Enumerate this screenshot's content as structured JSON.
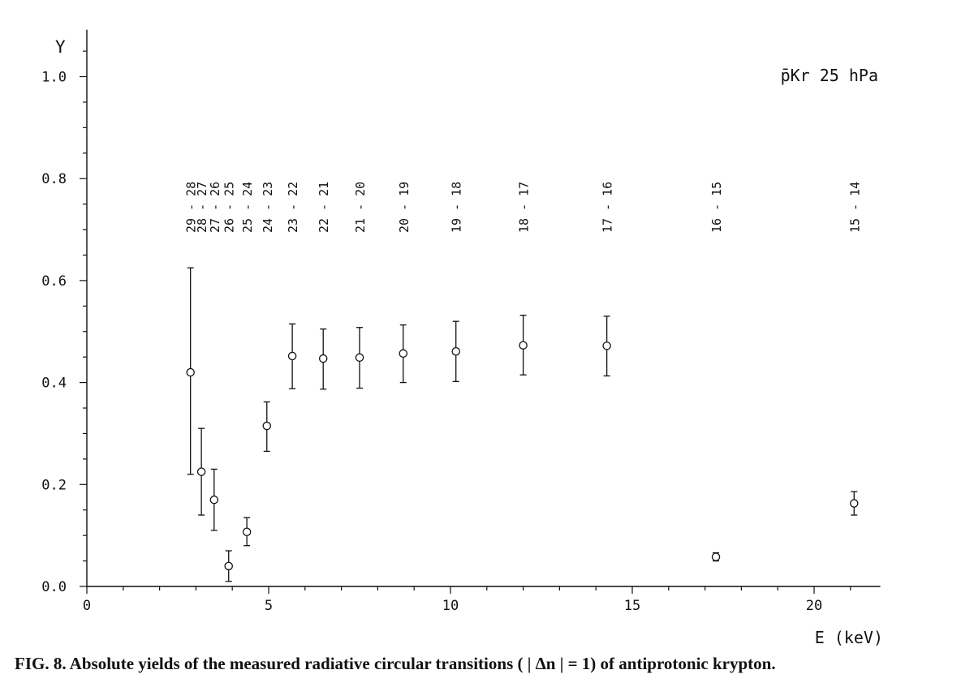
{
  "chart_data": {
    "type": "scatter",
    "ylabel": "Y",
    "xlabel": "E (keV)",
    "annotation": "p̄Kr 25 hPa",
    "xlim": [
      0,
      22
    ],
    "ylim": [
      0,
      1.1
    ],
    "x_ticks": [
      0,
      5,
      10,
      15,
      20
    ],
    "x_tick_labels": [
      "0",
      "5",
      "10",
      "15",
      "20"
    ],
    "y_ticks": [
      0.0,
      0.2,
      0.4,
      0.6,
      0.8,
      1.0
    ],
    "y_tick_labels": [
      "0.0",
      "0.2",
      "0.4",
      "0.6",
      "0.8",
      "1.0"
    ],
    "grid": false,
    "points": [
      {
        "transition": "29 - 28",
        "x": 2.85,
        "y": 0.42,
        "y_low": 0.22,
        "y_high": 0.625
      },
      {
        "transition": "28 - 27",
        "x": 3.15,
        "y": 0.225,
        "y_low": 0.14,
        "y_high": 0.31
      },
      {
        "transition": "27 - 26",
        "x": 3.5,
        "y": 0.17,
        "y_low": 0.11,
        "y_high": 0.23
      },
      {
        "transition": "26 - 25",
        "x": 3.9,
        "y": 0.04,
        "y_low": 0.01,
        "y_high": 0.07
      },
      {
        "transition": "25 - 24",
        "x": 4.4,
        "y": 0.107,
        "y_low": 0.08,
        "y_high": 0.135
      },
      {
        "transition": "24 - 23",
        "x": 4.95,
        "y": 0.315,
        "y_low": 0.265,
        "y_high": 0.362
      },
      {
        "transition": "23 - 22",
        "x": 5.65,
        "y": 0.452,
        "y_low": 0.388,
        "y_high": 0.515
      },
      {
        "transition": "22 - 21",
        "x": 6.5,
        "y": 0.447,
        "y_low": 0.387,
        "y_high": 0.505
      },
      {
        "transition": "21 - 20",
        "x": 7.5,
        "y": 0.449,
        "y_low": 0.389,
        "y_high": 0.508
      },
      {
        "transition": "20 - 19",
        "x": 8.7,
        "y": 0.457,
        "y_low": 0.4,
        "y_high": 0.513
      },
      {
        "transition": "19 - 18",
        "x": 10.15,
        "y": 0.461,
        "y_low": 0.402,
        "y_high": 0.52
      },
      {
        "transition": "18 - 17",
        "x": 12.0,
        "y": 0.473,
        "y_low": 0.415,
        "y_high": 0.532
      },
      {
        "transition": "17 - 16",
        "x": 14.3,
        "y": 0.472,
        "y_low": 0.413,
        "y_high": 0.53
      },
      {
        "transition": "16 - 15",
        "x": 17.3,
        "y": 0.058,
        "y_low": 0.05,
        "y_high": 0.066
      },
      {
        "transition": "15 - 14",
        "x": 21.1,
        "y": 0.163,
        "y_low": 0.14,
        "y_high": 0.186
      }
    ]
  },
  "caption": "FIG. 8.  Absolute yields of the measured radiative circular transitions ( | Δn | = 1) of antiprotonic krypton."
}
